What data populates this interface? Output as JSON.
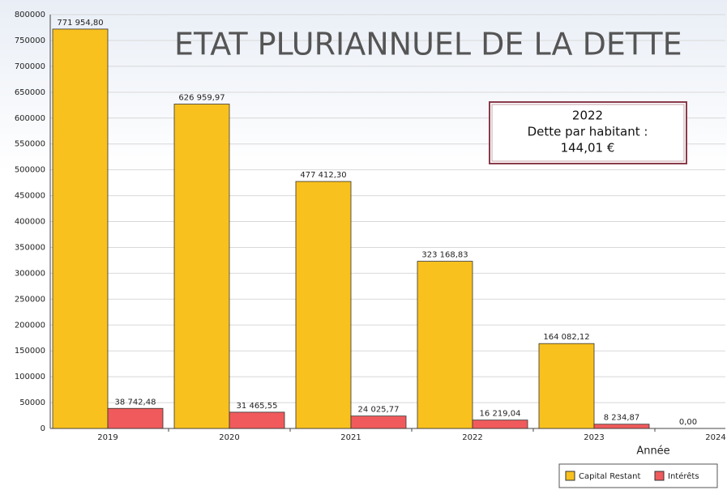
{
  "chart_data": {
    "type": "bar",
    "title": "ETAT PLURIANNUEL DE LA DETTE",
    "x_label": "Année",
    "annotation": [
      "2022",
      "Dette par habitant :",
      "144,01 €"
    ],
    "categories": [
      "2019",
      "2020",
      "2021",
      "2022",
      "2023",
      "2024"
    ],
    "series": [
      {
        "name": "Capital Restant",
        "color": "#f9c11e",
        "values": [
          771954.8,
          626959.97,
          477412.3,
          323168.83,
          164082.12,
          0
        ],
        "value_labels": [
          "771 954,80",
          "626 959,97",
          "477 412,30",
          "323 168,83",
          "164 082,12",
          "0,00"
        ]
      },
      {
        "name": "Intérêts",
        "color": "#f05a5c",
        "values": [
          38742.48,
          31465.55,
          24025.77,
          16219.04,
          8234.87,
          null
        ],
        "value_labels": [
          "38 742,48",
          "31 465,55",
          "24 025,77",
          "16 219,04",
          "8 234,87",
          null
        ]
      }
    ],
    "ylim": [
      0,
      800000
    ],
    "yticks": [
      0,
      50000,
      100000,
      150000,
      200000,
      250000,
      300000,
      350000,
      400000,
      450000,
      500000,
      550000,
      600000,
      650000,
      700000,
      750000,
      800000
    ],
    "grid": true,
    "legend": "bottom-right"
  }
}
